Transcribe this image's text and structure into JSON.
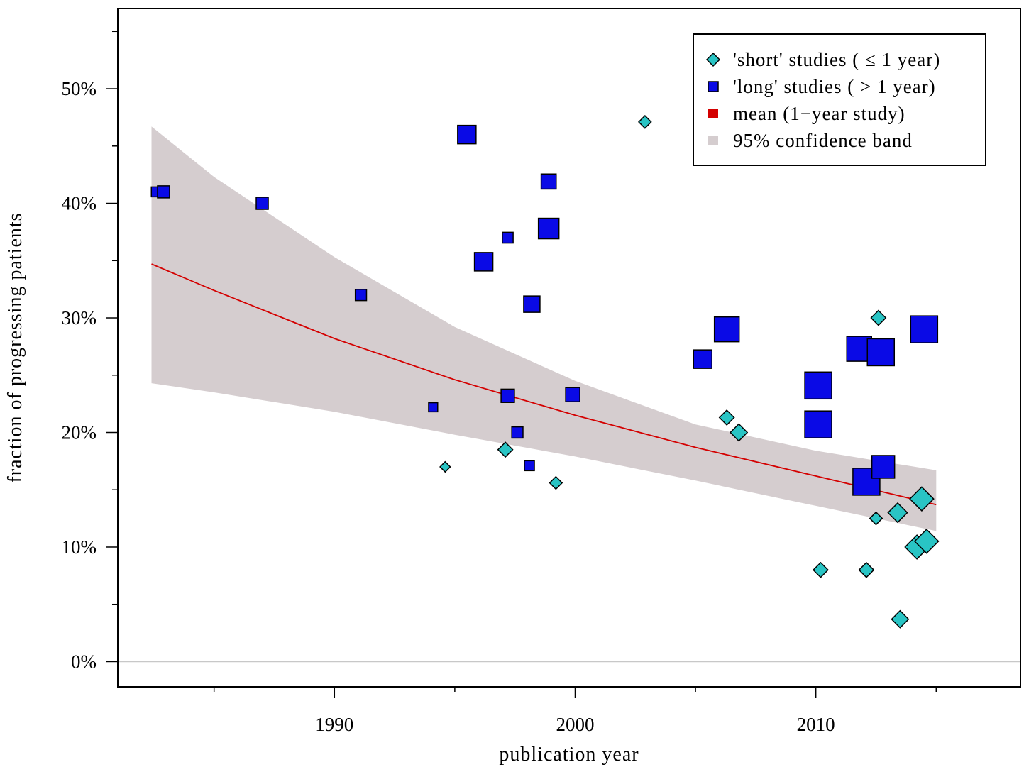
{
  "colors": {
    "short": "#29c4c4",
    "long": "#0a0ae6",
    "mean": "#d40000",
    "band": "#d5cdcf",
    "outline": "#000000",
    "zero_line": "#c8c8c8"
  },
  "chart_data": {
    "type": "scatter",
    "xlabel": "publication year",
    "ylabel": "fraction of progressing patients",
    "xlim": [
      1981,
      2018.5
    ],
    "ylim": [
      -2.2,
      57
    ],
    "x_ticks": [
      1990,
      2000,
      2010
    ],
    "x_tick_labels": [
      "1990",
      "2000",
      "2010"
    ],
    "x_minor_ticks": [
      1985,
      1995,
      2005,
      2015
    ],
    "y_ticks": [
      0,
      10,
      20,
      30,
      40,
      50
    ],
    "y_tick_labels": [
      "0%",
      "10%",
      "20%",
      "30%",
      "40%",
      "50%"
    ],
    "y_minor_ticks": [
      5,
      15,
      25,
      35,
      45,
      55
    ],
    "grid": false,
    "legend_position": "top-right",
    "legend": [
      {
        "key": "short",
        "symbol": "diamond",
        "label": "'short' studies ( ≤ 1 year)"
      },
      {
        "key": "long",
        "symbol": "square",
        "label": "'long' studies ( > 1 year)"
      },
      {
        "key": "mean",
        "symbol": "square",
        "label": "mean (1−year study)"
      },
      {
        "key": "band",
        "symbol": "square",
        "label": "95% confidence band"
      }
    ],
    "series": [
      {
        "key": "short",
        "points": [
          {
            "x": 1994.6,
            "y": 17.0,
            "s": 1
          },
          {
            "x": 1997.1,
            "y": 18.5,
            "s": 2
          },
          {
            "x": 1999.2,
            "y": 15.6,
            "s": 1.5
          },
          {
            "x": 2002.9,
            "y": 47.1,
            "s": 1.5
          },
          {
            "x": 2006.3,
            "y": 21.3,
            "s": 2
          },
          {
            "x": 2006.8,
            "y": 20.0,
            "s": 2.5
          },
          {
            "x": 2010.2,
            "y": 8.0,
            "s": 2
          },
          {
            "x": 2012.1,
            "y": 8.0,
            "s": 2
          },
          {
            "x": 2012.5,
            "y": 12.5,
            "s": 1.5
          },
          {
            "x": 2012.6,
            "y": 30.0,
            "s": 2
          },
          {
            "x": 2013.4,
            "y": 13.0,
            "s": 3
          },
          {
            "x": 2013.5,
            "y": 3.7,
            "s": 2.5
          },
          {
            "x": 2014.2,
            "y": 10.0,
            "s": 4
          },
          {
            "x": 2014.4,
            "y": 14.2,
            "s": 4
          },
          {
            "x": 2014.6,
            "y": 10.5,
            "s": 4
          }
        ]
      },
      {
        "key": "long",
        "points": [
          {
            "x": 1982.6,
            "y": 41.0,
            "s": 1
          },
          {
            "x": 1982.9,
            "y": 41.0,
            "s": 1.5
          },
          {
            "x": 1987.0,
            "y": 40.0,
            "s": 1.5
          },
          {
            "x": 1991.1,
            "y": 32.0,
            "s": 1.3
          },
          {
            "x": 1994.1,
            "y": 22.2,
            "s": 0.8
          },
          {
            "x": 1995.5,
            "y": 46.0,
            "s": 3
          },
          {
            "x": 1996.2,
            "y": 34.9,
            "s": 3
          },
          {
            "x": 1997.2,
            "y": 37.0,
            "s": 1.2
          },
          {
            "x": 1997.2,
            "y": 23.2,
            "s": 1.8
          },
          {
            "x": 1997.6,
            "y": 20.0,
            "s": 1.3
          },
          {
            "x": 1998.1,
            "y": 17.1,
            "s": 1
          },
          {
            "x": 1998.2,
            "y": 31.2,
            "s": 2.5
          },
          {
            "x": 1998.9,
            "y": 41.9,
            "s": 2.2
          },
          {
            "x": 1998.9,
            "y": 37.8,
            "s": 3.5
          },
          {
            "x": 1999.9,
            "y": 23.3,
            "s": 2
          },
          {
            "x": 2005.3,
            "y": 26.4,
            "s": 3
          },
          {
            "x": 2006.3,
            "y": 29.0,
            "s": 4.5
          },
          {
            "x": 2010.1,
            "y": 24.1,
            "s": 5
          },
          {
            "x": 2010.1,
            "y": 20.7,
            "s": 5
          },
          {
            "x": 2011.8,
            "y": 27.3,
            "s": 4.5
          },
          {
            "x": 2012.1,
            "y": 15.7,
            "s": 5
          },
          {
            "x": 2012.7,
            "y": 27.0,
            "s": 5
          },
          {
            "x": 2012.8,
            "y": 17.0,
            "s": 4
          },
          {
            "x": 2014.5,
            "y": 29.0,
            "s": 5
          }
        ]
      }
    ],
    "mean_line": {
      "x": [
        1982.4,
        1985,
        1990,
        1995,
        2000,
        2005,
        2010,
        2015
      ],
      "y": [
        34.7,
        32.4,
        28.2,
        24.6,
        21.5,
        18.7,
        16.2,
        13.7
      ]
    },
    "confidence_band": {
      "x": [
        1982.4,
        1985,
        1990,
        1995,
        2000,
        2005,
        2010,
        2015
      ],
      "upper": [
        46.7,
        42.3,
        35.3,
        29.2,
        24.5,
        20.7,
        18.4,
        16.7
      ],
      "lower": [
        24.3,
        23.5,
        21.8,
        19.8,
        17.9,
        15.8,
        13.6,
        11.4
      ]
    }
  }
}
